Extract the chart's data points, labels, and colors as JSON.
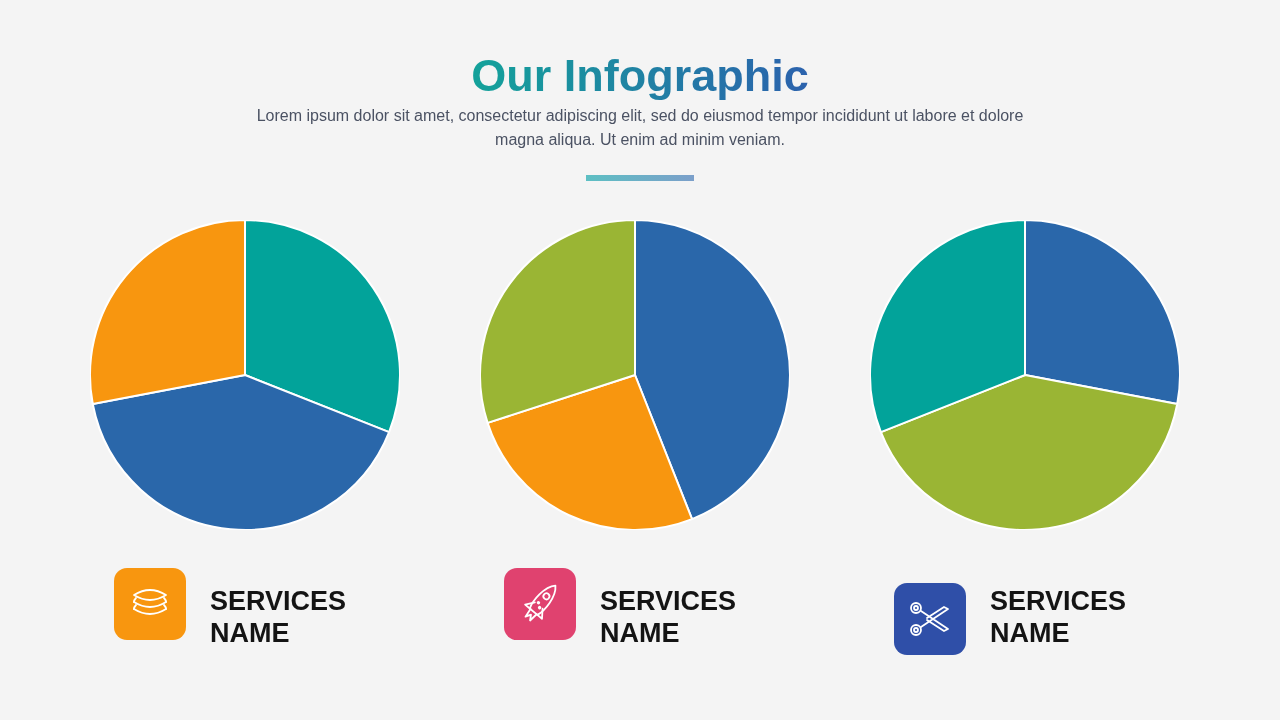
{
  "chart_data": [
    {
      "type": "other",
      "title": "Our Infographic",
      "subtitle": "Lorem ipsum dolor sit amet, consectetur adipiscing elit, sed do eiusmod tempor incididunt ut labore et dolore magna aliqua. Ut enim ad minim veniam."
    },
    {
      "type": "pie",
      "title": "SERVICES NAME",
      "categories": [
        null,
        null,
        null
      ],
      "values": [
        31,
        41,
        28
      ],
      "colors": [
        "#02a39a",
        "#2a67aa",
        "#f8960f"
      ]
    },
    {
      "type": "pie",
      "title": "SERVICES NAME",
      "categories": [
        null,
        null,
        null
      ],
      "values": [
        44,
        26,
        30
      ],
      "colors": [
        "#2a67aa",
        "#f8960f",
        "#9ab534"
      ]
    },
    {
      "type": "pie",
      "title": "SERVICES NAME",
      "categories": [
        null,
        null,
        null
      ],
      "values": [
        28,
        41,
        31
      ],
      "colors": [
        "#2a67aa",
        "#9ab534",
        "#02a39a"
      ]
    }
  ]
}
